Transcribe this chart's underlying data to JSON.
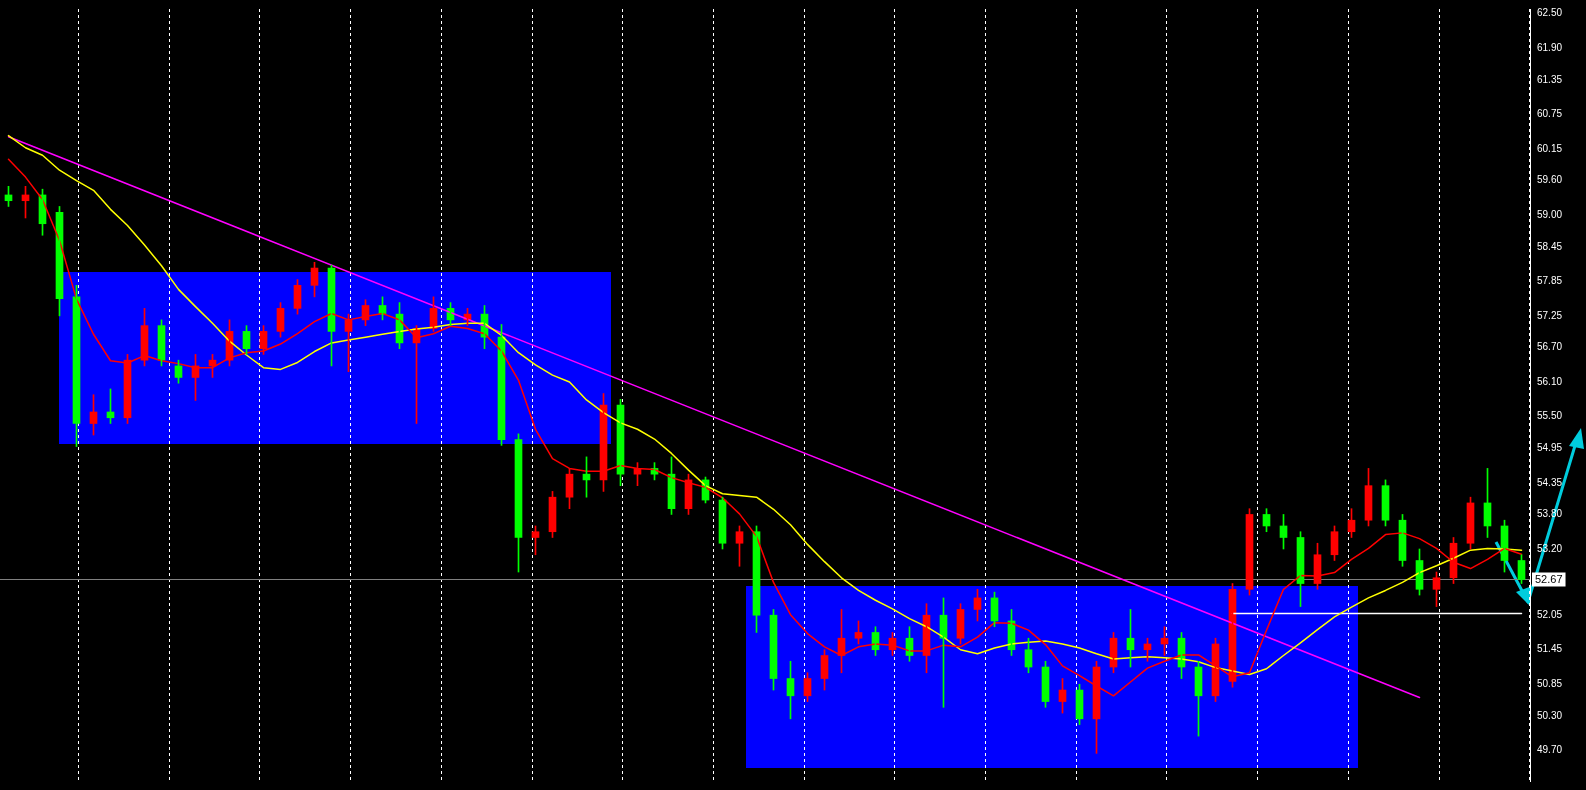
{
  "chart_data": {
    "type": "candlestick",
    "tick_labels": "y",
    "legend": false,
    "marker": "none",
    "categories": [
      null,
      null,
      null,
      null,
      null,
      null,
      null,
      null,
      null,
      null,
      null,
      null,
      null,
      null,
      null,
      null,
      null,
      null,
      null,
      null,
      null,
      null,
      null,
      null,
      null,
      null,
      null,
      null,
      null,
      null,
      null,
      null,
      null,
      null,
      null,
      null,
      null,
      null,
      null,
      null,
      null,
      null,
      null,
      null,
      null,
      null,
      null,
      null,
      null,
      null,
      null,
      null,
      null,
      null,
      null,
      null,
      null,
      null,
      null,
      null,
      null,
      null,
      null,
      null,
      null,
      null,
      null,
      null,
      null,
      null,
      null,
      null,
      null,
      null,
      null,
      null,
      null,
      null,
      null,
      null,
      null,
      null,
      null,
      null,
      null,
      null,
      null,
      null,
      null,
      null
    ],
    "ylim": [
      49.17,
      62.58
    ],
    "yticks": [
      {
        "value": 62.5,
        "label": "62.50"
      },
      {
        "value": 61.9,
        "label": "61.90"
      },
      {
        "value": 61.35,
        "label": "61.35"
      },
      {
        "value": 60.75,
        "label": "60.75"
      },
      {
        "value": 60.15,
        "label": "60.15"
      },
      {
        "value": 59.6,
        "label": "59.60"
      },
      {
        "value": 59.0,
        "label": "59.00"
      },
      {
        "value": 58.45,
        "label": "58.45"
      },
      {
        "value": 57.85,
        "label": "57.85"
      },
      {
        "value": 57.25,
        "label": "57.25"
      },
      {
        "value": 56.7,
        "label": "56.70"
      },
      {
        "value": 56.1,
        "label": "56.10"
      },
      {
        "value": 55.5,
        "label": "55.50"
      },
      {
        "value": 54.95,
        "label": "54.95"
      },
      {
        "value": 54.35,
        "label": "54.35"
      },
      {
        "value": 53.8,
        "label": "53.80"
      },
      {
        "value": 53.2,
        "label": "53.20"
      },
      {
        "value": 52.05,
        "label": "52.05"
      },
      {
        "value": 51.45,
        "label": "51.45"
      },
      {
        "value": 50.85,
        "label": "50.85"
      },
      {
        "value": 50.3,
        "label": "50.30"
      },
      {
        "value": 49.7,
        "label": "49.70"
      }
    ],
    "ohlc": [
      [
        59.35,
        59.5,
        59.15,
        59.25
      ],
      [
        59.25,
        59.5,
        58.95,
        59.35
      ],
      [
        59.35,
        59.45,
        58.65,
        58.85
      ],
      [
        59.05,
        59.15,
        57.25,
        57.55
      ],
      [
        57.58,
        57.78,
        54.98,
        55.38
      ],
      [
        55.38,
        55.88,
        55.18,
        55.58
      ],
      [
        55.58,
        55.98,
        55.38,
        55.48
      ],
      [
        55.48,
        56.58,
        55.38,
        56.48
      ],
      [
        56.48,
        57.38,
        56.38,
        57.08
      ],
      [
        57.08,
        57.18,
        56.38,
        56.48
      ],
      [
        56.38,
        56.48,
        56.08,
        56.18
      ],
      [
        56.18,
        56.58,
        55.78,
        56.38
      ],
      [
        56.38,
        56.58,
        56.18,
        56.48
      ],
      [
        56.48,
        57.18,
        56.38,
        56.98
      ],
      [
        56.98,
        57.08,
        56.58,
        56.68
      ],
      [
        56.68,
        57.08,
        56.58,
        56.98
      ],
      [
        56.98,
        57.48,
        56.88,
        57.38
      ],
      [
        57.38,
        57.88,
        57.28,
        57.78
      ],
      [
        57.78,
        58.18,
        57.58,
        58.08
      ],
      [
        58.08,
        58.13,
        56.38,
        56.98
      ],
      [
        56.98,
        57.28,
        56.28,
        57.18
      ],
      [
        57.18,
        57.53,
        57.08,
        57.43
      ],
      [
        57.43,
        57.58,
        57.18,
        57.28
      ],
      [
        57.28,
        57.48,
        56.68,
        56.78
      ],
      [
        56.78,
        57.08,
        55.38,
        57.03
      ],
      [
        57.03,
        57.58,
        56.98,
        57.38
      ],
      [
        57.38,
        57.48,
        57.08,
        57.18
      ],
      [
        57.18,
        57.38,
        57.08,
        57.28
      ],
      [
        57.28,
        57.43,
        56.68,
        56.88
      ],
      [
        56.88,
        57.1,
        55.0,
        55.1
      ],
      [
        55.1,
        55.2,
        52.8,
        53.4
      ],
      [
        53.4,
        53.6,
        53.1,
        53.5
      ],
      [
        53.5,
        54.2,
        53.4,
        54.1
      ],
      [
        54.1,
        54.6,
        53.9,
        54.5
      ],
      [
        54.5,
        54.8,
        54.1,
        54.4
      ],
      [
        54.4,
        55.9,
        54.2,
        55.7
      ],
      [
        55.7,
        55.8,
        54.3,
        54.5
      ],
      [
        54.5,
        54.7,
        54.3,
        54.6
      ],
      [
        54.6,
        54.7,
        54.4,
        54.5
      ],
      [
        54.5,
        54.8,
        53.8,
        53.9
      ],
      [
        53.9,
        54.5,
        53.8,
        54.4
      ],
      [
        54.4,
        54.45,
        54.0,
        54.05
      ],
      [
        54.05,
        54.1,
        53.2,
        53.3
      ],
      [
        53.3,
        53.6,
        52.9,
        53.5
      ],
      [
        53.5,
        53.6,
        51.75,
        52.05
      ],
      [
        52.05,
        52.15,
        50.75,
        50.95
      ],
      [
        50.95,
        51.25,
        50.25,
        50.65
      ],
      [
        50.65,
        51.05,
        50.55,
        50.95
      ],
      [
        50.95,
        51.45,
        50.75,
        51.35
      ],
      [
        51.35,
        52.15,
        51.05,
        51.65
      ],
      [
        51.65,
        51.95,
        51.55,
        51.75
      ],
      [
        51.75,
        51.85,
        51.35,
        51.45
      ],
      [
        51.45,
        51.75,
        51.35,
        51.65
      ],
      [
        51.65,
        51.85,
        51.25,
        51.35
      ],
      [
        51.35,
        52.25,
        51.05,
        52.05
      ],
      [
        52.05,
        52.35,
        50.45,
        51.65
      ],
      [
        51.65,
        52.25,
        51.55,
        52.15
      ],
      [
        52.15,
        52.5,
        51.95,
        52.35
      ],
      [
        52.35,
        52.45,
        51.85,
        51.95
      ],
      [
        51.95,
        52.15,
        51.35,
        51.45
      ],
      [
        51.45,
        51.65,
        51.05,
        51.15
      ],
      [
        51.15,
        51.25,
        50.45,
        50.55
      ],
      [
        50.55,
        50.95,
        50.35,
        50.75
      ],
      [
        50.75,
        50.85,
        50.15,
        50.25
      ],
      [
        50.25,
        51.25,
        49.65,
        51.15
      ],
      [
        51.15,
        51.75,
        51.05,
        51.65
      ],
      [
        51.65,
        52.15,
        51.15,
        51.45
      ],
      [
        51.45,
        51.65,
        51.25,
        51.55
      ],
      [
        51.55,
        51.85,
        51.35,
        51.65
      ],
      [
        51.65,
        51.75,
        50.95,
        51.15
      ],
      [
        51.15,
        51.25,
        49.95,
        50.65
      ],
      [
        50.65,
        51.65,
        50.55,
        51.55
      ],
      [
        50.9,
        52.6,
        50.8,
        52.5
      ],
      [
        52.5,
        53.9,
        52.4,
        53.8
      ],
      [
        53.8,
        53.9,
        53.5,
        53.6
      ],
      [
        53.6,
        53.8,
        53.2,
        53.4
      ],
      [
        53.4,
        53.5,
        52.2,
        52.6
      ],
      [
        52.6,
        53.3,
        52.5,
        53.1
      ],
      [
        53.1,
        53.6,
        53.0,
        53.5
      ],
      [
        53.5,
        53.9,
        53.4,
        53.7
      ],
      [
        53.7,
        54.6,
        53.6,
        54.3
      ],
      [
        54.3,
        54.4,
        53.6,
        53.7
      ],
      [
        53.7,
        53.8,
        52.9,
        53.0
      ],
      [
        53.0,
        53.2,
        52.4,
        52.5
      ],
      [
        52.5,
        52.8,
        52.2,
        52.7
      ],
      [
        52.7,
        53.4,
        52.6,
        53.3
      ],
      [
        53.3,
        54.1,
        53.2,
        54.0
      ],
      [
        54.0,
        54.6,
        53.4,
        53.6
      ],
      [
        53.6,
        53.7,
        52.8,
        53.0
      ],
      [
        53.0,
        53.1,
        52.6,
        52.67
      ]
    ],
    "colors": [
      "#00ff00",
      "#ff0000",
      "#00ff00",
      "#00ff00",
      "#00ff00",
      "#ff0000",
      "#00ff00",
      "#ff0000",
      "#ff0000",
      "#00ff00",
      "#00ff00",
      "#ff0000",
      "#ff0000",
      "#ff0000",
      "#00ff00",
      "#ff0000",
      "#ff0000",
      "#ff0000",
      "#ff0000",
      "#00ff00",
      "#ff0000",
      "#ff0000",
      "#00ff00",
      "#00ff00",
      "#ff0000",
      "#ff0000",
      "#00ff00",
      "#ff0000",
      "#00ff00",
      "#00ff00",
      "#00ff00",
      "#ff0000",
      "#ff0000",
      "#ff0000",
      "#00ff00",
      "#ff0000",
      "#00ff00",
      "#ff0000",
      "#00ff00",
      "#00ff00",
      "#ff0000",
      "#00ff00",
      "#00ff00",
      "#ff0000",
      "#00ff00",
      "#00ff00",
      "#00ff00",
      "#ff0000",
      "#ff0000",
      "#ff0000",
      "#ff0000",
      "#00ff00",
      "#ff0000",
      "#00ff00",
      "#ff0000",
      "#00ff00",
      "#ff0000",
      "#ff0000",
      "#00ff00",
      "#00ff00",
      "#00ff00",
      "#00ff00",
      "#ff0000",
      "#00ff00",
      "#ff0000",
      "#ff0000",
      "#00ff00",
      "#ff0000",
      "#ff0000",
      "#00ff00",
      "#00ff00",
      "#ff0000",
      "#ff0000",
      "#ff0000",
      "#00ff00",
      "#00ff00",
      "#00ff00",
      "#ff0000",
      "#ff0000",
      "#ff0000",
      "#ff0000",
      "#00ff00",
      "#00ff00",
      "#00ff00",
      "#ff0000",
      "#ff0000",
      "#ff0000",
      "#00ff00",
      "#00ff00",
      "#00ff00"
    ],
    "series": [
      {
        "type": "line",
        "color": "#ff0000",
        "values": [
          59.97,
          59.66,
          59.27,
          58.56,
          57.54,
          56.93,
          56.47,
          56.43,
          56.56,
          56.47,
          56.42,
          56.35,
          56.35,
          56.52,
          56.61,
          56.64,
          56.76,
          56.94,
          57.15,
          57.29,
          57.18,
          57.24,
          57.29,
          57.18,
          56.87,
          56.94,
          57.07,
          57.03,
          56.94,
          56.64,
          56.13,
          55.28,
          54.77,
          54.6,
          54.55,
          54.55,
          54.65,
          54.6,
          54.58,
          54.44,
          54.35,
          54.27,
          54.09,
          53.81,
          53.42,
          52.62,
          52.06,
          51.73,
          51.5,
          51.35,
          51.5,
          51.55,
          51.53,
          51.43,
          51.43,
          51.53,
          51.5,
          51.67,
          51.92,
          51.91,
          51.79,
          51.54,
          51.17,
          51.0,
          50.82,
          50.65,
          50.89,
          51.13,
          51.25,
          51.36,
          51.36,
          51.17,
          50.98,
          51.05,
          51.79,
          52.5,
          52.74,
          52.73,
          52.79,
          53.02,
          53.21,
          53.45,
          53.48,
          53.38,
          53.21,
          52.97,
          52.86,
          53.02,
          53.21,
          53.11
        ]
      },
      {
        "type": "line",
        "color": "#ffff00",
        "values": [
          60.38,
          60.17,
          60.04,
          59.78,
          59.6,
          59.43,
          59.1,
          58.82,
          58.48,
          58.12,
          57.71,
          57.41,
          57.12,
          56.81,
          56.57,
          56.35,
          56.32,
          56.44,
          56.63,
          56.78,
          56.83,
          56.88,
          56.93,
          56.98,
          57.02,
          57.05,
          57.1,
          57.12,
          57.12,
          56.91,
          56.61,
          56.4,
          56.22,
          56.1,
          55.79,
          55.57,
          55.39,
          55.28,
          55.11,
          54.86,
          54.57,
          54.3,
          54.16,
          54.13,
          54.1,
          53.89,
          53.62,
          53.28,
          52.98,
          52.7,
          52.48,
          52.31,
          52.16,
          51.99,
          51.85,
          51.67,
          51.45,
          51.38,
          51.48,
          51.55,
          51.58,
          51.6,
          51.55,
          51.48,
          51.38,
          51.29,
          51.31,
          51.33,
          51.31,
          51.29,
          51.24,
          51.14,
          51.08,
          51.02,
          51.12,
          51.35,
          51.57,
          51.8,
          52.02,
          52.19,
          52.35,
          52.48,
          52.62,
          52.79,
          52.91,
          53.04,
          53.18,
          53.21,
          53.2,
          53.18
        ]
      },
      {
        "type": "line",
        "color": "#ff00ff",
        "values": [
          60.36,
          null,
          null,
          null,
          null,
          null,
          null,
          null,
          null,
          null,
          null,
          null,
          null,
          null,
          null,
          null,
          null,
          null,
          null,
          null,
          null,
          null,
          null,
          null,
          null,
          null,
          null,
          null,
          null,
          null,
          null,
          null,
          null,
          null,
          null,
          null,
          null,
          null,
          null,
          null,
          null,
          null,
          null,
          null,
          null,
          null,
          null,
          null,
          null,
          null,
          null,
          null,
          null,
          null,
          null,
          null,
          null,
          null,
          null,
          null,
          null,
          null,
          null,
          null,
          null,
          null,
          null,
          null,
          null,
          null,
          null,
          null,
          null,
          null,
          null,
          null,
          null,
          null,
          null,
          null,
          null,
          null,
          null,
          50.62,
          null,
          null,
          null,
          null,
          null,
          null
        ]
      },
      {
        "type": "line",
        "color": "#ffffff",
        "values": [
          null,
          null,
          null,
          null,
          null,
          null,
          null,
          null,
          null,
          null,
          null,
          null,
          null,
          null,
          null,
          null,
          null,
          null,
          null,
          null,
          null,
          null,
          null,
          null,
          null,
          null,
          null,
          null,
          null,
          null,
          null,
          null,
          null,
          null,
          null,
          null,
          null,
          null,
          null,
          null,
          null,
          null,
          null,
          null,
          null,
          null,
          null,
          null,
          null,
          null,
          null,
          null,
          null,
          null,
          null,
          null,
          null,
          null,
          null,
          null,
          null,
          null,
          null,
          null,
          null,
          null,
          null,
          null,
          null,
          null,
          null,
          null,
          52.08,
          52.08,
          52.08,
          52.08,
          52.08,
          52.08,
          52.08,
          52.08,
          52.08,
          52.08,
          52.08,
          52.08,
          52.08,
          52.08,
          52.08,
          52.08,
          52.08,
          52.08
        ]
      }
    ],
    "ref_lines": [
      {
        "axis": "y",
        "value": 52.67,
        "label": "52.67",
        "color": "#808080"
      }
    ]
  }
}
